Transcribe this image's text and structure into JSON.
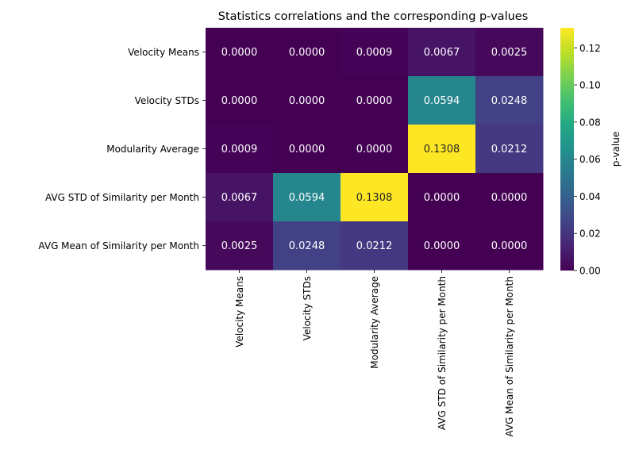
{
  "chart_data": {
    "type": "heatmap",
    "title": "Statistics correlations and the corresponding p-values",
    "row_labels": [
      "Velocity Means",
      "Velocity STDs",
      "Modularity Average",
      "AVG STD of Similarity per Month",
      "AVG Mean of Similarity per Month"
    ],
    "col_labels": [
      "Velocity Means",
      "Velocity STDs",
      "Modularity Average",
      "AVG STD of Similarity per Month",
      "AVG Mean of Similarity per Month"
    ],
    "values": [
      [
        0.0,
        0.0,
        0.0009,
        0.0067,
        0.0025
      ],
      [
        0.0,
        0.0,
        0.0,
        0.0594,
        0.0248
      ],
      [
        0.0009,
        0.0,
        0.0,
        0.1308,
        0.0212
      ],
      [
        0.0067,
        0.0594,
        0.1308,
        0.0,
        0.0
      ],
      [
        0.0025,
        0.0248,
        0.0212,
        0.0,
        0.0
      ]
    ],
    "value_format_decimals": 4,
    "colormap": "viridis",
    "vmin": 0,
    "vmax": 0.1308,
    "colorbar": {
      "label": "p-value",
      "ticks": [
        0.0,
        0.02,
        0.04,
        0.06,
        0.08,
        0.1,
        0.12
      ],
      "tick_labels": [
        "0.00",
        "0.02",
        "0.04",
        "0.06",
        "0.08",
        "0.10",
        "0.12"
      ],
      "placement": "right"
    },
    "text_color_dark_cells": "#ffffff",
    "text_color_light_cells": "#262626"
  }
}
